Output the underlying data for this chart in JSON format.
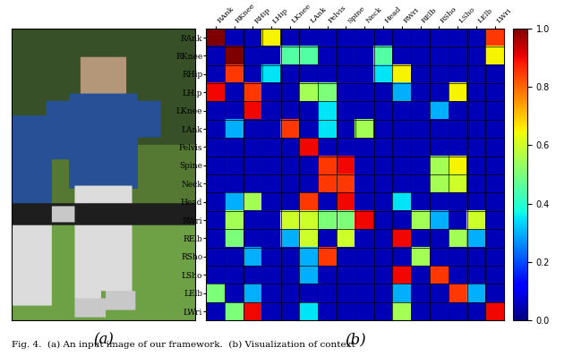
{
  "labels": [
    "RAnk",
    "RKnee",
    "RHip",
    "LHip",
    "LKnee",
    "LAnk",
    "Pelvis",
    "Spine",
    "Neck",
    "Head",
    "RWri",
    "RElb",
    "RSho",
    "LSho",
    "LElb",
    "LWri"
  ],
  "heatmap": [
    [
      1.0,
      0.05,
      0.05,
      0.65,
      0.05,
      0.05,
      0.05,
      0.05,
      0.05,
      0.05,
      0.05,
      0.05,
      0.05,
      0.05,
      0.05,
      0.85
    ],
    [
      0.05,
      1.0,
      0.05,
      0.05,
      0.45,
      0.45,
      0.05,
      0.05,
      0.05,
      0.45,
      0.05,
      0.05,
      0.05,
      0.05,
      0.05,
      0.65
    ],
    [
      0.05,
      0.85,
      0.05,
      0.35,
      0.05,
      0.05,
      0.05,
      0.05,
      0.05,
      0.35,
      0.65,
      0.05,
      0.05,
      0.05,
      0.05,
      0.05
    ],
    [
      0.9,
      0.05,
      0.85,
      0.05,
      0.05,
      0.55,
      0.5,
      0.05,
      0.05,
      0.05,
      0.3,
      0.05,
      0.05,
      0.65,
      0.05,
      0.05
    ],
    [
      0.05,
      0.05,
      0.9,
      0.05,
      0.05,
      0.05,
      0.35,
      0.05,
      0.05,
      0.05,
      0.05,
      0.05,
      0.3,
      0.05,
      0.05,
      0.05
    ],
    [
      0.05,
      0.3,
      0.05,
      0.05,
      0.85,
      0.05,
      0.35,
      0.05,
      0.55,
      0.05,
      0.05,
      0.05,
      0.05,
      0.05,
      0.05,
      0.05
    ],
    [
      0.05,
      0.05,
      0.05,
      0.05,
      0.05,
      0.9,
      0.05,
      0.05,
      0.05,
      0.05,
      0.05,
      0.05,
      0.05,
      0.05,
      0.05,
      0.05
    ],
    [
      0.05,
      0.05,
      0.05,
      0.05,
      0.05,
      0.05,
      0.85,
      0.9,
      0.05,
      0.05,
      0.05,
      0.05,
      0.55,
      0.65,
      0.05,
      0.05
    ],
    [
      0.05,
      0.05,
      0.05,
      0.05,
      0.05,
      0.05,
      0.85,
      0.85,
      0.05,
      0.05,
      0.05,
      0.05,
      0.55,
      0.6,
      0.05,
      0.05
    ],
    [
      0.05,
      0.3,
      0.55,
      0.05,
      0.05,
      0.85,
      0.05,
      0.9,
      0.05,
      0.05,
      0.35,
      0.05,
      0.05,
      0.05,
      0.05,
      0.05
    ],
    [
      0.05,
      0.55,
      0.05,
      0.05,
      0.6,
      0.6,
      0.5,
      0.5,
      0.9,
      0.05,
      0.05,
      0.55,
      0.3,
      0.05,
      0.6,
      0.05
    ],
    [
      0.05,
      0.5,
      0.05,
      0.05,
      0.3,
      0.6,
      0.05,
      0.6,
      0.05,
      0.05,
      0.9,
      0.05,
      0.05,
      0.55,
      0.3,
      0.05
    ],
    [
      0.05,
      0.05,
      0.3,
      0.05,
      0.05,
      0.3,
      0.85,
      0.05,
      0.05,
      0.05,
      0.05,
      0.55,
      0.05,
      0.05,
      0.05,
      0.05
    ],
    [
      0.05,
      0.05,
      0.05,
      0.05,
      0.05,
      0.3,
      0.05,
      0.05,
      0.05,
      0.05,
      0.9,
      0.05,
      0.85,
      0.05,
      0.05,
      0.05
    ],
    [
      0.5,
      0.05,
      0.3,
      0.05,
      0.05,
      0.05,
      0.05,
      0.05,
      0.05,
      0.05,
      0.3,
      0.05,
      0.05,
      0.85,
      0.3,
      0.05
    ],
    [
      0.05,
      0.5,
      0.9,
      0.05,
      0.05,
      0.35,
      0.05,
      0.05,
      0.05,
      0.05,
      0.55,
      0.05,
      0.05,
      0.05,
      0.05,
      0.9
    ]
  ],
  "title_a": "(a)",
  "title_b": "(b)",
  "colorbar_ticks": [
    0.0,
    0.2,
    0.4,
    0.6,
    0.8,
    1.0
  ],
  "fig_caption": "Fig. 4.  (a) An input image of our framework.  (b) Visualization of context",
  "img_bg_color": [
    85,
    110,
    60
  ],
  "img_person_color": [
    50,
    90,
    160
  ],
  "img_ground_color": [
    100,
    150,
    70
  ]
}
